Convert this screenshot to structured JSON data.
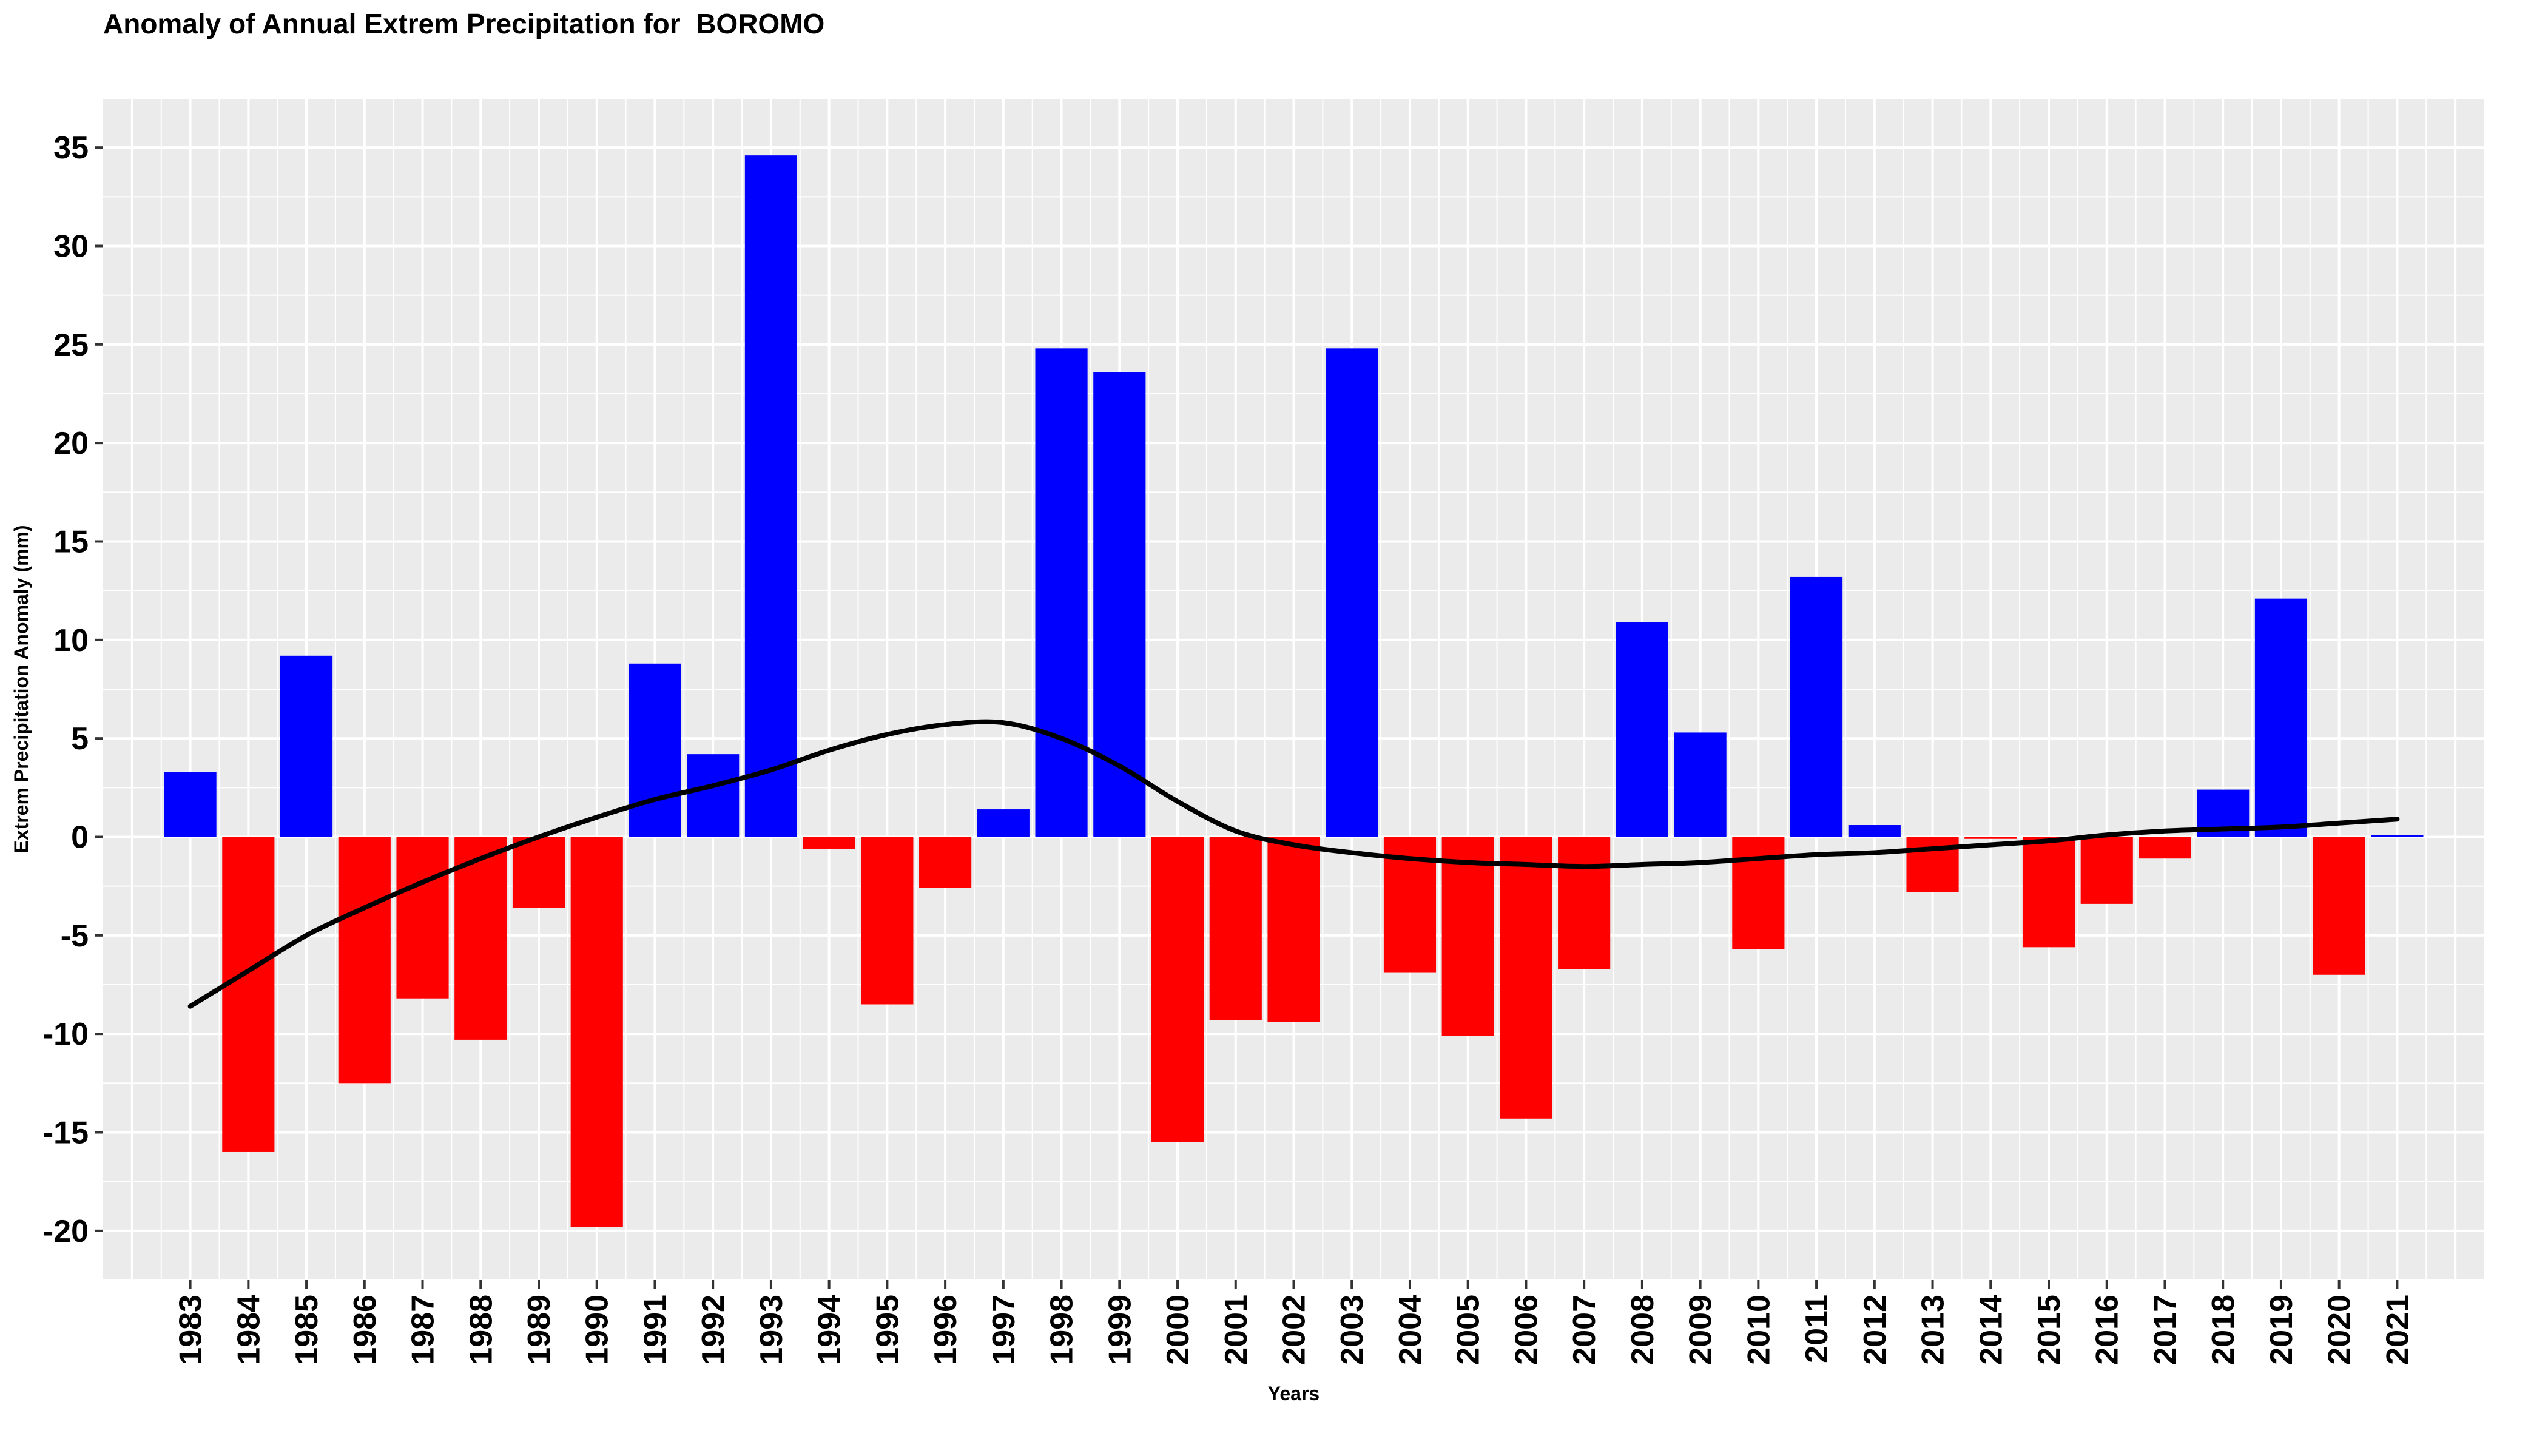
{
  "chart_data": {
    "type": "bar",
    "title": "Anomaly of Annual Extrem Precipitation for  BOROMO",
    "xlabel": "Years",
    "ylabel": "Extrem Precipitation Anomaly (mm)",
    "ylim": [
      -22.5,
      37.5
    ],
    "yticks": [
      35,
      30,
      25,
      20,
      15,
      10,
      5,
      0,
      -5,
      -10,
      -15,
      -20
    ],
    "grid": true,
    "categories": [
      "1983",
      "1984",
      "1985",
      "1986",
      "1987",
      "1988",
      "1989",
      "1990",
      "1991",
      "1992",
      "1993",
      "1994",
      "1995",
      "1996",
      "1997",
      "1998",
      "1999",
      "2000",
      "2001",
      "2002",
      "2003",
      "2004",
      "2005",
      "2006",
      "2007",
      "2008",
      "2009",
      "2010",
      "2011",
      "2012",
      "2013",
      "2014",
      "2015",
      "2016",
      "2017",
      "2018",
      "2019",
      "2020",
      "2021"
    ],
    "values": [
      3.3,
      -16.0,
      9.2,
      -12.5,
      -8.2,
      -10.3,
      -3.6,
      -19.8,
      8.8,
      4.2,
      34.6,
      -0.6,
      -8.5,
      -2.6,
      1.4,
      24.8,
      23.6,
      -15.5,
      -9.3,
      -9.4,
      24.8,
      -6.9,
      -10.1,
      -14.3,
      -6.7,
      10.9,
      5.3,
      -5.7,
      13.2,
      0.6,
      -2.8,
      -0.1,
      -5.6,
      -3.4,
      -1.1,
      2.4,
      12.1,
      -7.0,
      0.1
    ],
    "smooth": {
      "name": "",
      "x": [
        1983,
        1984,
        1985,
        1986,
        1987,
        1988,
        1989,
        1990,
        1991,
        1992,
        1993,
        1994,
        1995,
        1996,
        1997,
        1998,
        1999,
        2000,
        2001,
        2002,
        2003,
        2004,
        2005,
        2006,
        2007,
        2008,
        2009,
        2010,
        2011,
        2012,
        2013,
        2014,
        2015,
        2016,
        2017,
        2018,
        2019,
        2020,
        2021
      ],
      "y": [
        -8.6,
        -6.8,
        -5.0,
        -3.6,
        -2.3,
        -1.1,
        0.0,
        1.0,
        1.9,
        2.6,
        3.4,
        4.4,
        5.2,
        5.7,
        5.8,
        5.0,
        3.6,
        1.8,
        0.3,
        -0.4,
        -0.8,
        -1.1,
        -1.3,
        -1.4,
        -1.5,
        -1.4,
        -1.3,
        -1.1,
        -0.9,
        -0.8,
        -0.6,
        -0.4,
        -0.2,
        0.1,
        0.3,
        0.4,
        0.5,
        0.7,
        0.9
      ],
      "color": "#000000"
    },
    "colors": {
      "positive": "#0000ff",
      "negative": "#ff0000",
      "panel_background": "#ebebeb",
      "grid": "#ffffff",
      "trend": "#000000"
    }
  }
}
